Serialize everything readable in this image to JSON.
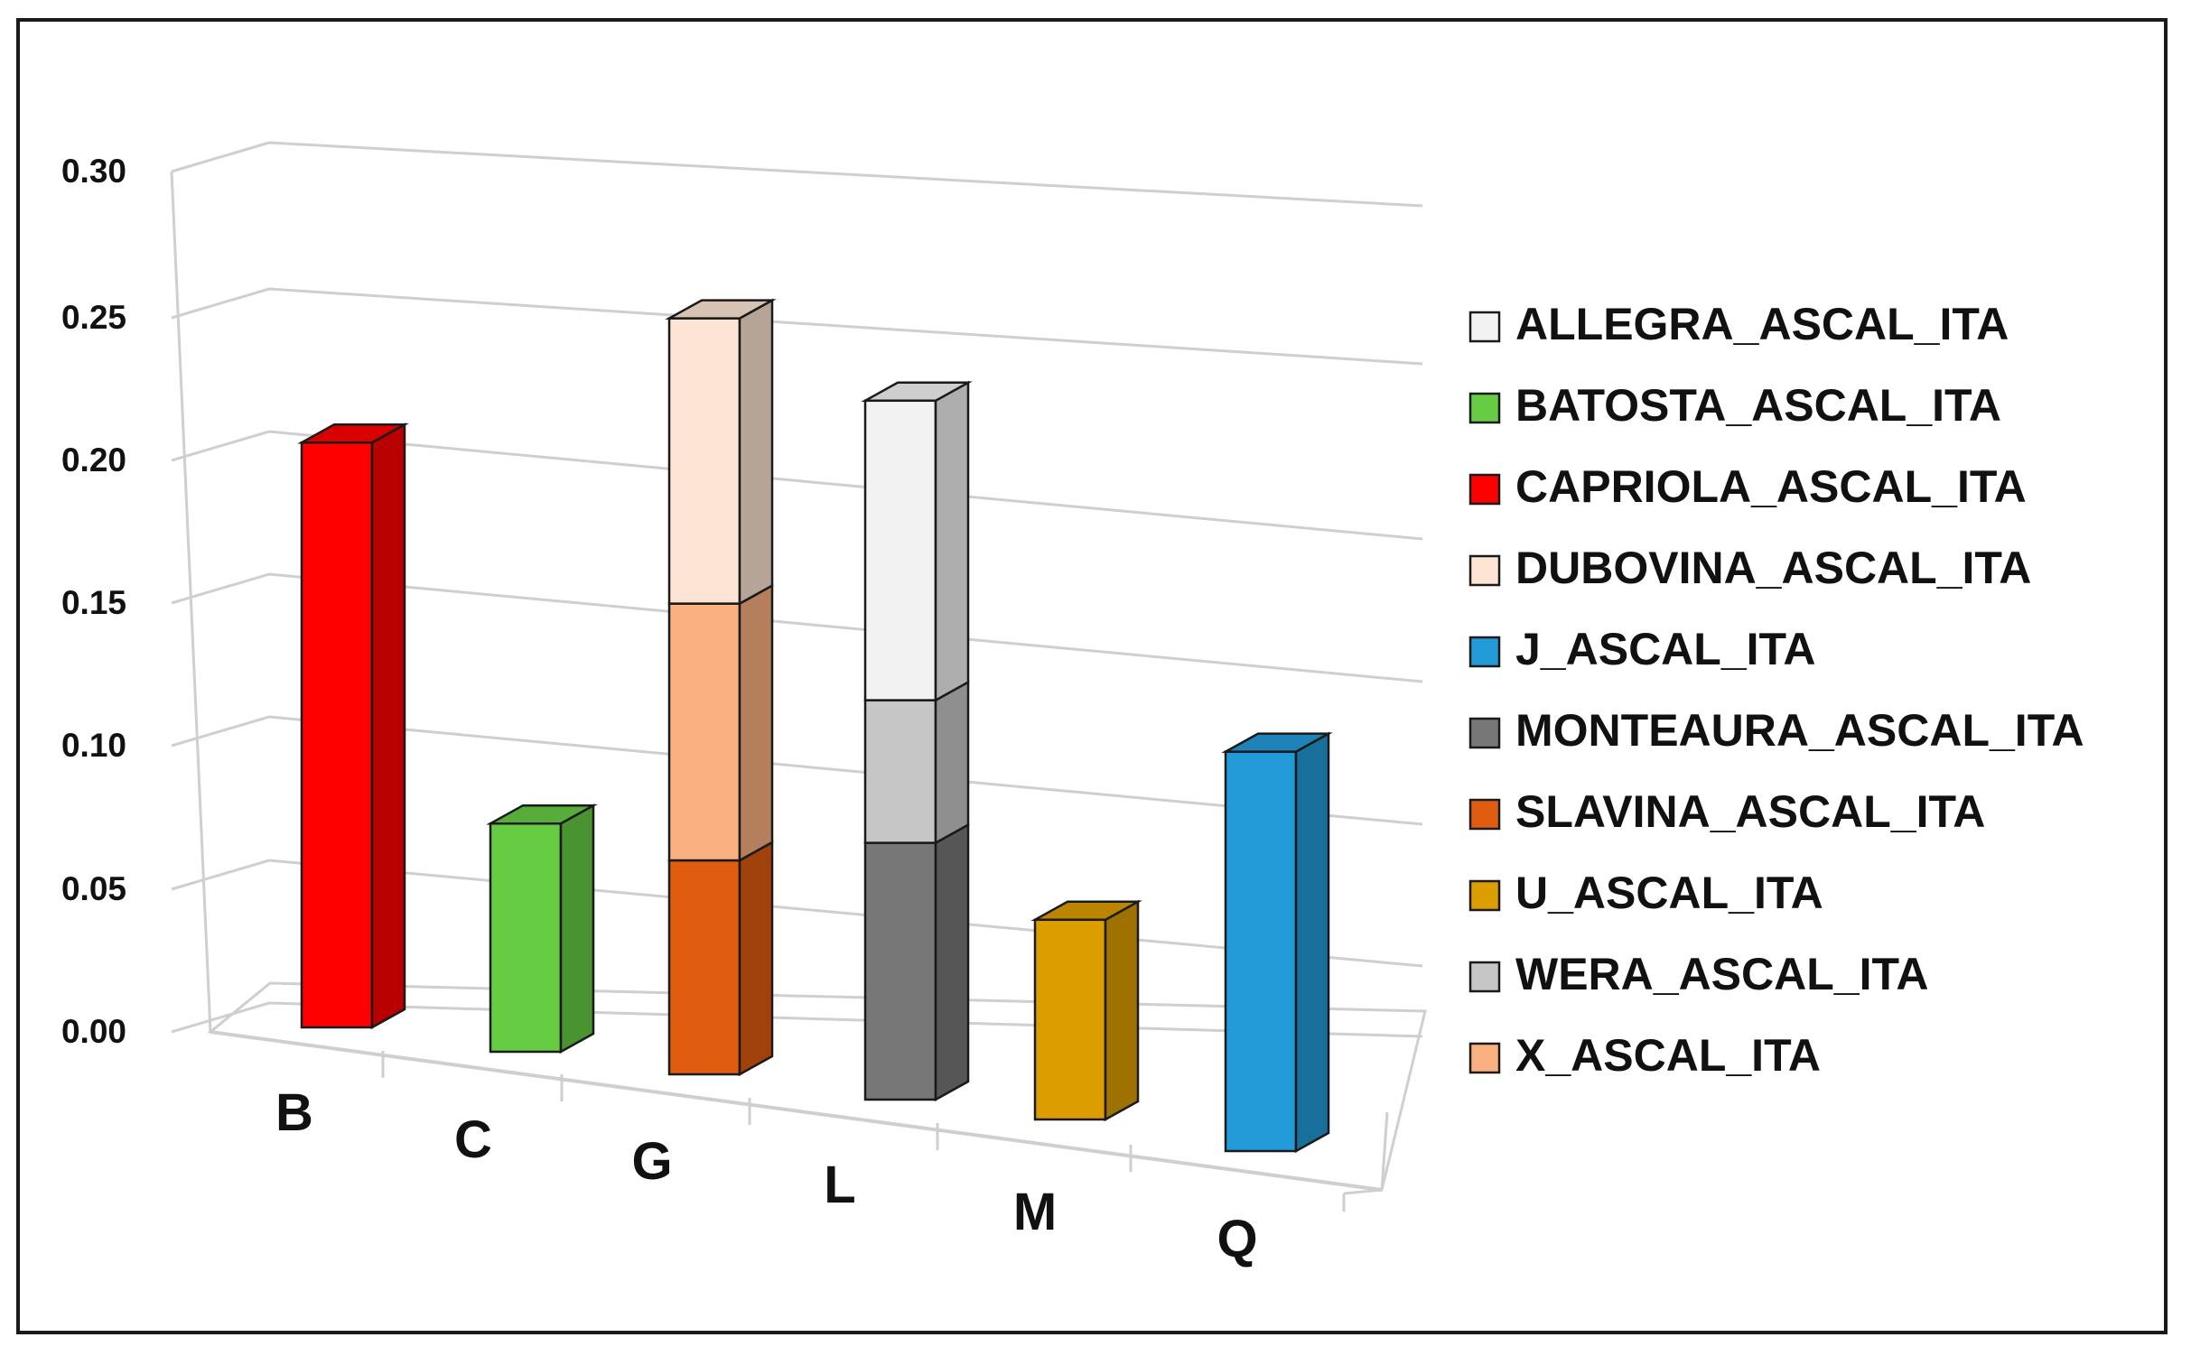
{
  "chart_data": {
    "type": "bar",
    "subtype": "3d-stacked-column",
    "title": "",
    "xlabel": "",
    "ylabel": "",
    "ylim": [
      0,
      0.3
    ],
    "yticks": [
      "0.00",
      "0.05",
      "0.10",
      "0.15",
      "0.20",
      "0.25",
      "0.30"
    ],
    "grid": true,
    "legend_position": "right",
    "categories": [
      "B",
      "C",
      "G",
      "L",
      "M",
      "Q"
    ],
    "series": [
      {
        "name": "ALLEGRA_ASCAL_ITA",
        "color": "#f2f2f2",
        "values": [
          0,
          0,
          0,
          0.105,
          0,
          0
        ]
      },
      {
        "name": "BATOSTA_ASCAL_ITA",
        "color": "#66cc44",
        "values": [
          0,
          0.08,
          0,
          0,
          0,
          0
        ]
      },
      {
        "name": "CAPRIOLA_ASCAL_ITA",
        "color": "#ff0000",
        "values": [
          0.205,
          0,
          0,
          0,
          0,
          0
        ]
      },
      {
        "name": "DUBOVINA_ASCAL_ITA",
        "color": "#fde4d4",
        "values": [
          0,
          0,
          0.1,
          0,
          0,
          0
        ]
      },
      {
        "name": "J_ASCAL_ITA",
        "color": "#229ad8",
        "values": [
          0,
          0,
          0,
          0,
          0,
          0.14
        ]
      },
      {
        "name": "MONTEAURA_ASCAL_ITA",
        "color": "#777777",
        "values": [
          0,
          0,
          0,
          0.09,
          0,
          0
        ]
      },
      {
        "name": "SLAVINA_ASCAL_ITA",
        "color": "#e05c10",
        "values": [
          0,
          0,
          0.075,
          0,
          0,
          0
        ]
      },
      {
        "name": "U_ASCAL_ITA",
        "color": "#dc9d00",
        "values": [
          0,
          0,
          0,
          0,
          0.07,
          0
        ]
      },
      {
        "name": "WERA_ASCAL_ITA",
        "color": "#c6c6c6",
        "values": [
          0,
          0,
          0,
          0.05,
          0,
          0
        ]
      },
      {
        "name": "X_ASCAL_ITA",
        "color": "#fbb081",
        "values": [
          0,
          0,
          0.09,
          0,
          0,
          0
        ]
      }
    ],
    "stack_order": {
      "B": [
        "CAPRIOLA_ASCAL_ITA"
      ],
      "C": [
        "BATOSTA_ASCAL_ITA"
      ],
      "G": [
        "SLAVINA_ASCAL_ITA",
        "X_ASCAL_ITA",
        "DUBOVINA_ASCAL_ITA"
      ],
      "L": [
        "MONTEAURA_ASCAL_ITA",
        "WERA_ASCAL_ITA",
        "ALLEGRA_ASCAL_ITA"
      ],
      "M": [
        "U_ASCAL_ITA"
      ],
      "Q": [
        "J_ASCAL_ITA"
      ]
    }
  }
}
